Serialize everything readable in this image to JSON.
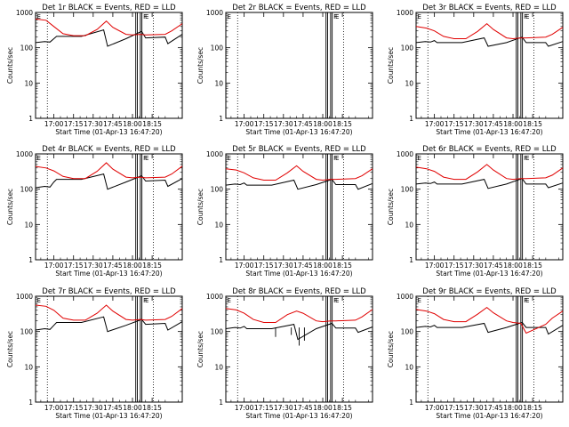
{
  "figure": {
    "background": "#ffffff",
    "events_color": "#000000",
    "lld_color": "#e00000"
  },
  "chart_data": [
    {
      "type": "line",
      "title": "Det 1r BLACK = Events, RED = LLD",
      "ylabel": "Counts/sec",
      "xlabel": "Start Time (01-Apr-13 16:47:20)",
      "x_ticks": [
        "17:00",
        "17:15",
        "17:30",
        "17:45",
        "18:00",
        "18:15"
      ],
      "y_ticks": [
        "1",
        "10",
        "100",
        "1000"
      ],
      "yscale": "log",
      "ylim": [
        1,
        1000
      ],
      "xlim_minutes": [
        -14,
        98
      ],
      "events_curve": "flat",
      "series": [
        {
          "name": "Events",
          "x_min": [
            -14,
            -7,
            -3,
            0,
            2,
            21,
            38,
            41,
            55,
            67,
            70,
            85,
            87,
            98
          ],
          "values": [
            140,
            150,
            145,
            180,
            210,
            210,
            320,
            110,
            180,
            290,
            190,
            200,
            130,
            240
          ]
        },
        {
          "name": "LLD",
          "x_min": [
            -14,
            -6,
            0,
            7,
            15,
            24,
            33,
            40,
            45,
            55,
            60,
            66,
            70,
            85,
            90,
            98
          ],
          "values": [
            650,
            600,
            400,
            250,
            220,
            220,
            330,
            570,
            380,
            240,
            230,
            240,
            230,
            240,
            300,
            480
          ]
        }
      ]
    },
    {
      "type": "line",
      "title": "Det 2r BLACK = Events, RED = LLD",
      "ylabel": "Counts/sec",
      "xlabel": "Start Time (01-Apr-13 16:47:20)",
      "x_ticks": [
        "17:00",
        "17:15",
        "17:30",
        "17:45",
        "18:00",
        "18:15"
      ],
      "y_ticks": [
        "1",
        "10",
        "100",
        "1000"
      ],
      "yscale": "log",
      "ylim": [
        1,
        1000
      ],
      "xlim_minutes": [
        -14,
        98
      ],
      "series": []
    },
    {
      "type": "line",
      "title": "Det 3r BLACK = Events, RED = LLD",
      "ylabel": "Counts/sec",
      "xlabel": "Start Time (01-Apr-13 16:47:20)",
      "x_ticks": [
        "17:00",
        "17:15",
        "17:30",
        "17:45",
        "18:00",
        "18:15"
      ],
      "y_ticks": [
        "1",
        "10",
        "100",
        "1000"
      ],
      "yscale": "log",
      "ylim": [
        1,
        1000
      ],
      "xlim_minutes": [
        -14,
        98
      ],
      "series": [
        {
          "name": "Events",
          "x_min": [
            -14,
            -7,
            -3,
            0,
            2,
            21,
            38,
            41,
            55,
            67,
            70,
            85,
            87,
            98
          ],
          "values": [
            140,
            150,
            145,
            160,
            140,
            140,
            190,
            110,
            140,
            200,
            140,
            140,
            110,
            150
          ]
        },
        {
          "name": "LLD",
          "x_min": [
            -14,
            -6,
            0,
            7,
            15,
            24,
            33,
            40,
            45,
            55,
            60,
            66,
            70,
            85,
            90,
            98
          ],
          "values": [
            400,
            360,
            300,
            210,
            180,
            180,
            290,
            480,
            330,
            190,
            180,
            190,
            190,
            200,
            240,
            380
          ]
        }
      ]
    },
    {
      "type": "line",
      "title": "Det 4r BLACK = Events, RED = LLD",
      "ylabel": "Counts/sec",
      "xlabel": "Start Time (01-Apr-13 16:47:20)",
      "x_ticks": [
        "17:00",
        "17:15",
        "17:30",
        "17:45",
        "18:00",
        "18:15"
      ],
      "y_ticks": [
        "1",
        "10",
        "100",
        "1000"
      ],
      "yscale": "log",
      "ylim": [
        1,
        1000
      ],
      "xlim_minutes": [
        -14,
        98
      ],
      "series": [
        {
          "name": "Events",
          "x_min": [
            -14,
            -7,
            -3,
            0,
            2,
            21,
            38,
            41,
            55,
            67,
            70,
            85,
            87,
            98
          ],
          "values": [
            110,
            120,
            115,
            160,
            190,
            190,
            270,
            100,
            160,
            240,
            170,
            180,
            120,
            200
          ]
        },
        {
          "name": "LLD",
          "x_min": [
            -14,
            -6,
            0,
            7,
            15,
            24,
            33,
            40,
            45,
            55,
            60,
            66,
            70,
            85,
            90,
            98
          ],
          "values": [
            440,
            400,
            330,
            230,
            200,
            200,
            320,
            560,
            370,
            220,
            210,
            220,
            210,
            220,
            270,
            450
          ]
        }
      ]
    },
    {
      "type": "line",
      "title": "Det 5r BLACK = Events, RED = LLD",
      "ylabel": "Counts/sec",
      "xlabel": "Start Time (01-Apr-13 16:47:20)",
      "x_ticks": [
        "17:00",
        "17:15",
        "17:30",
        "17:45",
        "18:00",
        "18:15"
      ],
      "y_ticks": [
        "1",
        "10",
        "100",
        "1000"
      ],
      "yscale": "log",
      "ylim": [
        1,
        1000
      ],
      "xlim_minutes": [
        -14,
        98
      ],
      "series": [
        {
          "name": "Events",
          "x_min": [
            -14,
            -7,
            -3,
            0,
            2,
            21,
            38,
            41,
            55,
            67,
            70,
            85,
            87,
            98
          ],
          "values": [
            130,
            140,
            135,
            150,
            130,
            130,
            180,
            100,
            135,
            190,
            135,
            135,
            100,
            145
          ]
        },
        {
          "name": "LLD",
          "x_min": [
            -14,
            -6,
            0,
            7,
            15,
            24,
            33,
            40,
            45,
            55,
            60,
            66,
            70,
            85,
            90,
            98
          ],
          "values": [
            380,
            350,
            290,
            210,
            180,
            180,
            290,
            460,
            320,
            190,
            180,
            190,
            190,
            200,
            240,
            380
          ]
        }
      ]
    },
    {
      "type": "line",
      "title": "Det 6r BLACK = Events, RED = LLD",
      "ylabel": "Counts/sec",
      "xlabel": "Start Time (01-Apr-13 16:47:20)",
      "x_ticks": [
        "17:00",
        "17:15",
        "17:30",
        "17:45",
        "18:00",
        "18:15"
      ],
      "y_ticks": [
        "1",
        "10",
        "100",
        "1000"
      ],
      "yscale": "log",
      "ylim": [
        1,
        1000
      ],
      "xlim_minutes": [
        -14,
        98
      ],
      "series": [
        {
          "name": "Events",
          "x_min": [
            -14,
            -7,
            -3,
            0,
            2,
            21,
            38,
            41,
            55,
            67,
            70,
            85,
            87,
            98
          ],
          "values": [
            140,
            150,
            145,
            160,
            140,
            140,
            190,
            105,
            140,
            200,
            140,
            140,
            110,
            150
          ]
        },
        {
          "name": "LLD",
          "x_min": [
            -14,
            -6,
            0,
            7,
            15,
            24,
            33,
            40,
            45,
            55,
            60,
            66,
            70,
            85,
            90,
            98
          ],
          "values": [
            420,
            380,
            320,
            220,
            190,
            190,
            310,
            500,
            350,
            200,
            190,
            200,
            200,
            210,
            250,
            400
          ]
        }
      ]
    },
    {
      "type": "line",
      "title": "Det 7r BLACK = Events, RED = LLD",
      "ylabel": "Counts/sec",
      "xlabel": "Start Time (01-Apr-13 16:47:20)",
      "x_ticks": [
        "17:00",
        "17:15",
        "17:30",
        "17:45",
        "18:00",
        "18:15"
      ],
      "y_ticks": [
        "1",
        "10",
        "100",
        "1000"
      ],
      "yscale": "log",
      "ylim": [
        1,
        1000
      ],
      "xlim_minutes": [
        -14,
        98
      ],
      "events_curve": "flat",
      "series": [
        {
          "name": "Events",
          "x_min": [
            -14,
            -7,
            -3,
            0,
            2,
            21,
            38,
            41,
            55,
            67,
            70,
            85,
            87,
            98
          ],
          "values": [
            110,
            120,
            115,
            150,
            180,
            180,
            260,
            100,
            150,
            220,
            160,
            170,
            110,
            190
          ]
        },
        {
          "name": "LLD",
          "x_min": [
            -14,
            -6,
            0,
            7,
            15,
            24,
            33,
            40,
            45,
            55,
            60,
            66,
            70,
            85,
            90,
            98
          ],
          "values": [
            560,
            520,
            400,
            240,
            210,
            210,
            330,
            560,
            380,
            220,
            210,
            220,
            210,
            220,
            270,
            450
          ]
        }
      ]
    },
    {
      "type": "line",
      "title": "Det 8r BLACK = Events, RED = LLD",
      "ylabel": "Counts/sec",
      "xlabel": "Start Time (01-Apr-13 16:47:20)",
      "x_ticks": [
        "17:00",
        "17:15",
        "17:30",
        "17:45",
        "18:00",
        "18:15"
      ],
      "y_ticks": [
        "1",
        "10",
        "100",
        "1000"
      ],
      "yscale": "log",
      "ylim": [
        1,
        1000
      ],
      "xlim_minutes": [
        -14,
        98
      ],
      "events_curve": "noisy",
      "series": [
        {
          "name": "Events",
          "x_min": [
            -14,
            -7,
            -3,
            0,
            2,
            21,
            38,
            41,
            55,
            67,
            70,
            85,
            87,
            98
          ],
          "values": [
            120,
            130,
            125,
            140,
            120,
            120,
            160,
            60,
            120,
            170,
            125,
            125,
            95,
            135
          ]
        },
        {
          "name": "LLD",
          "x_min": [
            -14,
            -6,
            0,
            7,
            15,
            24,
            33,
            40,
            45,
            55,
            60,
            66,
            70,
            85,
            90,
            98
          ],
          "values": [
            450,
            410,
            330,
            220,
            180,
            180,
            300,
            380,
            330,
            200,
            190,
            200,
            200,
            210,
            260,
            420
          ]
        }
      ]
    },
    {
      "type": "line",
      "title": "Det 9r BLACK = Events, RED = LLD",
      "ylabel": "Counts/sec",
      "xlabel": "Start Time (01-Apr-13 16:47:20)",
      "x_ticks": [
        "17:00",
        "17:15",
        "17:30",
        "17:45",
        "18:00",
        "18:15"
      ],
      "y_ticks": [
        "1",
        "10",
        "100",
        "1000"
      ],
      "yscale": "log",
      "ylim": [
        1,
        1000
      ],
      "xlim_minutes": [
        -14,
        98
      ],
      "series": [
        {
          "name": "Events",
          "x_min": [
            -14,
            -7,
            -3,
            0,
            2,
            21,
            38,
            41,
            55,
            67,
            70,
            85,
            87,
            98
          ],
          "values": [
            130,
            140,
            135,
            150,
            130,
            130,
            170,
            95,
            130,
            180,
            130,
            130,
            85,
            150
          ]
        },
        {
          "name": "LLD",
          "x_min": [
            -14,
            -6,
            0,
            7,
            15,
            24,
            33,
            40,
            45,
            55,
            60,
            66,
            70,
            85,
            90,
            98
          ],
          "values": [
            420,
            380,
            320,
            220,
            190,
            190,
            310,
            480,
            340,
            200,
            180,
            170,
            90,
            160,
            240,
            380
          ]
        }
      ]
    }
  ]
}
